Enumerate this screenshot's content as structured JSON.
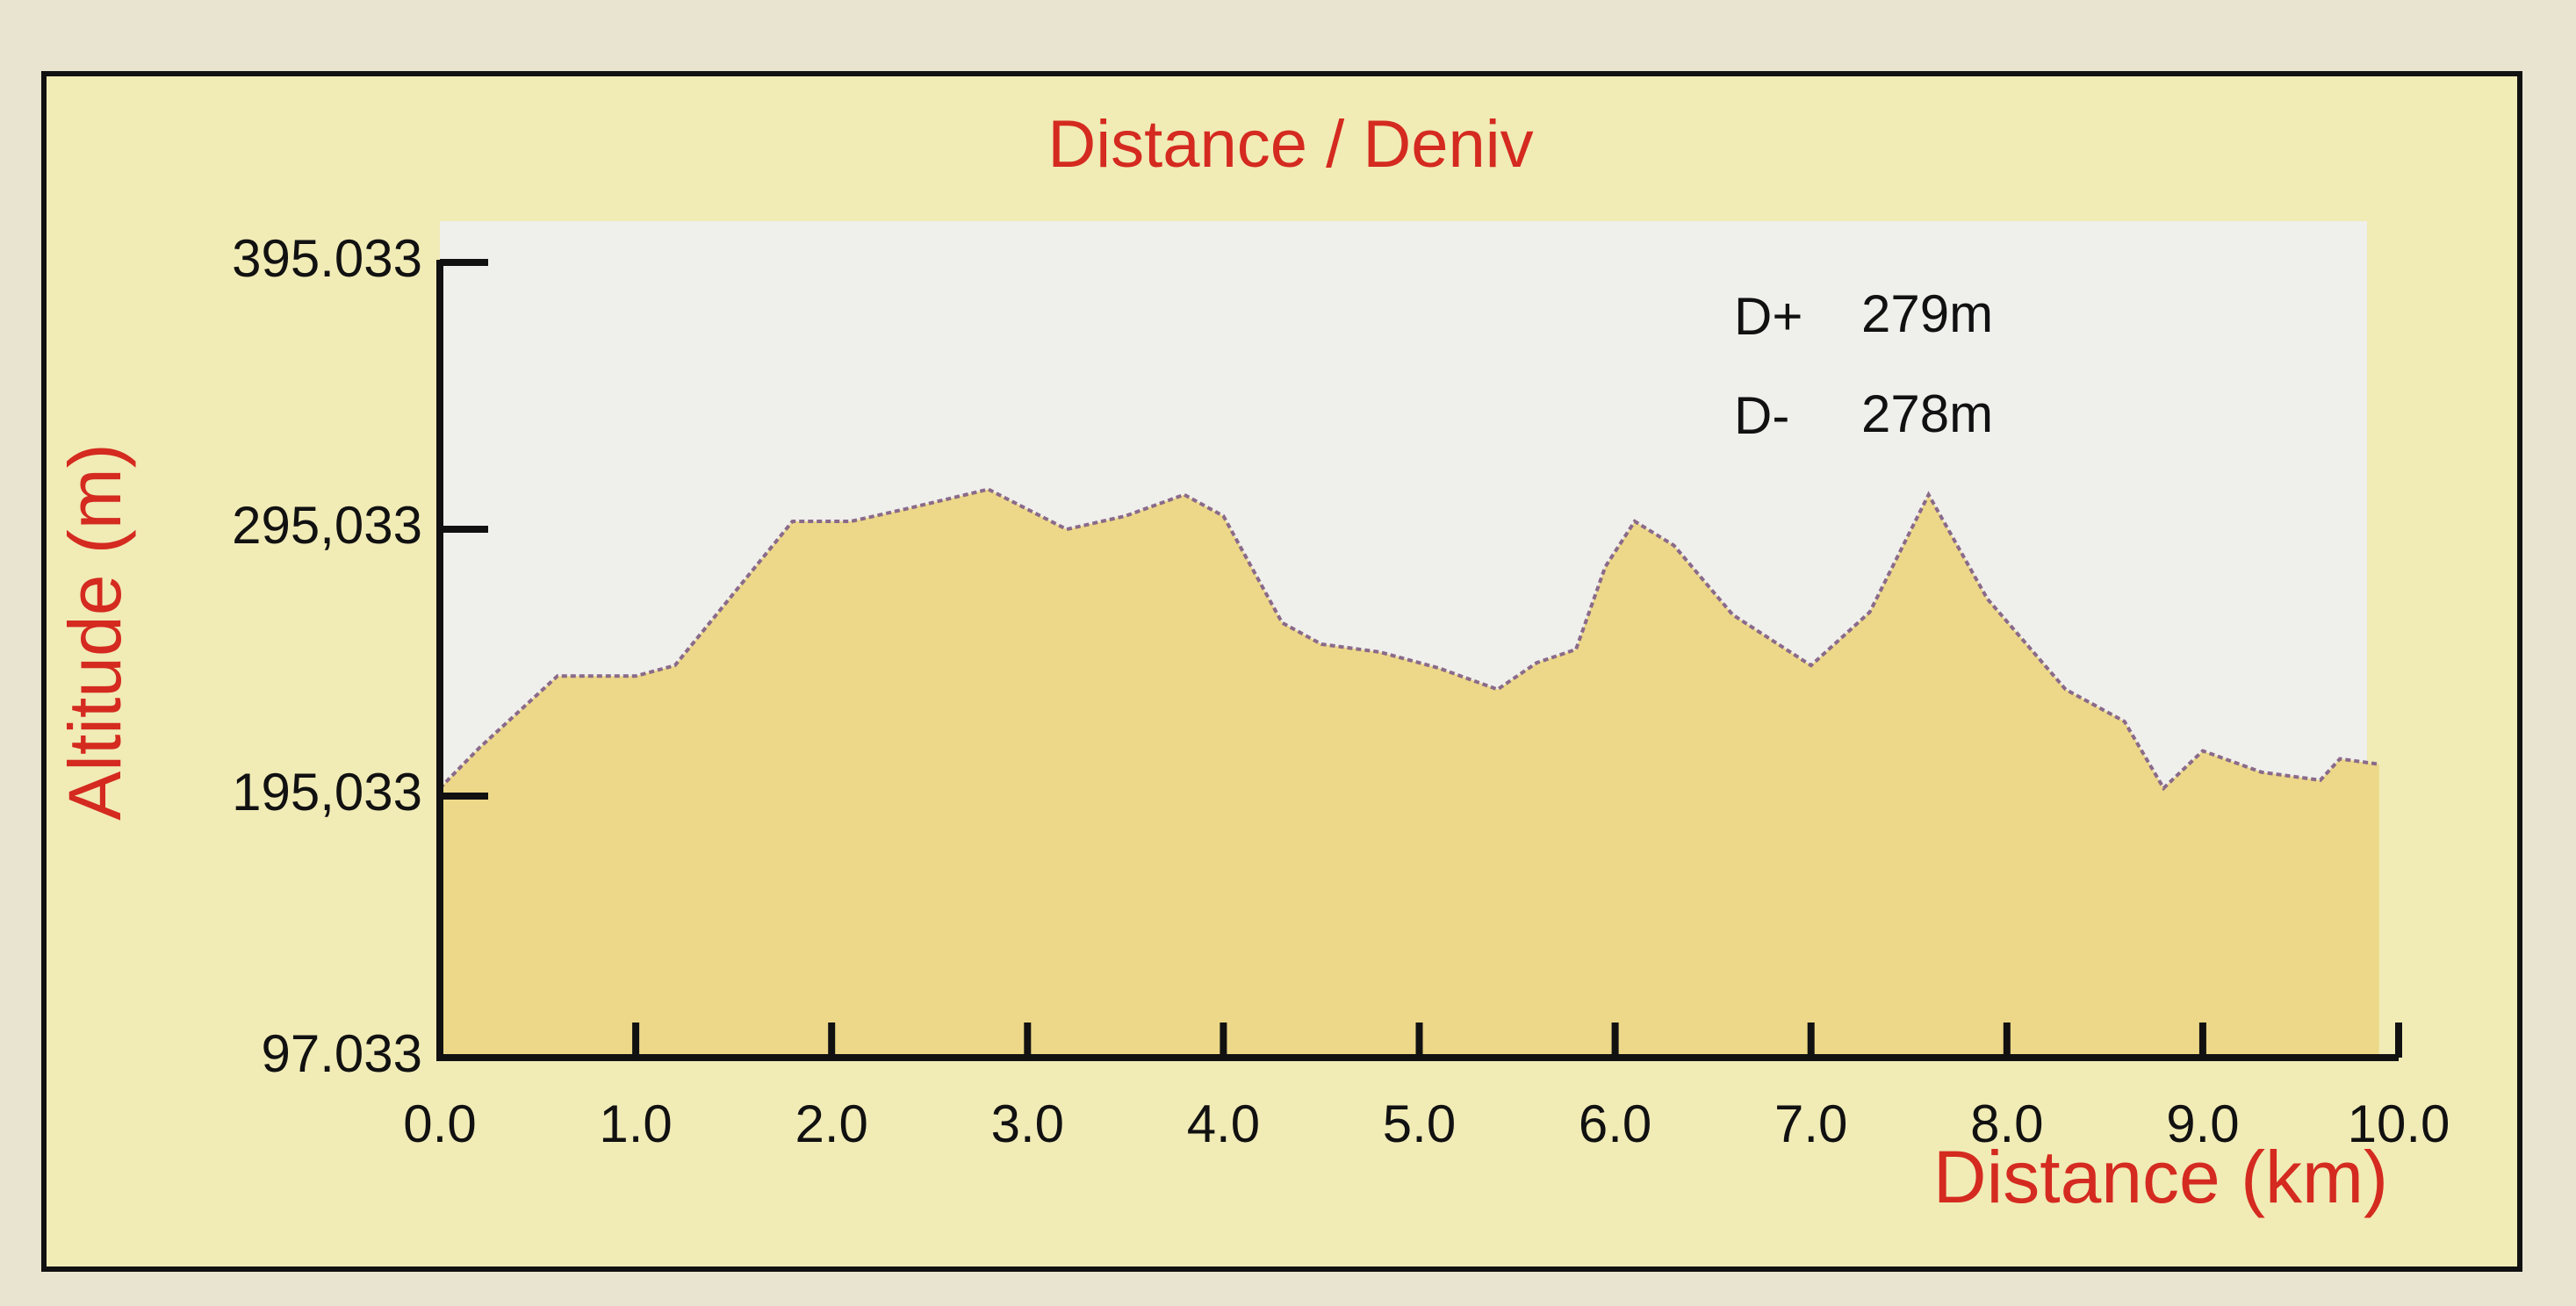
{
  "chart_data": {
    "type": "area",
    "title": "Distance / Deniv",
    "x_label": "Distance (km)",
    "y_label": "Altitude (m)",
    "annotations": [
      "D+",
      "279m",
      "D-",
      "278m"
    ],
    "color": "#ecd888",
    "line_color": "#8a6a8a",
    "x": [
      0,
      0.2,
      0.6,
      1.0,
      1.2,
      1.8,
      2.1,
      2.4,
      2.8,
      3.2,
      3.5,
      3.8,
      4.0,
      4.3,
      4.5,
      4.8,
      5.1,
      5.4,
      5.6,
      5.8,
      5.95,
      6.1,
      6.3,
      6.6,
      7.0,
      7.3,
      7.6,
      7.9,
      8.3,
      8.6,
      8.8,
      9.0,
      9.3,
      9.6,
      9.7,
      9.9
    ],
    "values": [
      198,
      213,
      240,
      240,
      244,
      298,
      298,
      303,
      310,
      295,
      300,
      308,
      300,
      260,
      252,
      249,
      243,
      235,
      245,
      250,
      281,
      298,
      289,
      263,
      244,
      264,
      308,
      269,
      235,
      223,
      198,
      212,
      204,
      201,
      209,
      207
    ],
    "xlim": [
      0,
      10
    ],
    "xticks": [
      {
        "value": 0,
        "label": "0.0"
      },
      {
        "value": 1,
        "label": "1.0"
      },
      {
        "value": 2,
        "label": "2.0"
      },
      {
        "value": 3,
        "label": "3.0"
      },
      {
        "value": 4,
        "label": "4.0"
      },
      {
        "value": 5,
        "label": "5.0"
      },
      {
        "value": 6,
        "label": "6.0"
      },
      {
        "value": 7,
        "label": "7.0"
      },
      {
        "value": 8,
        "label": "8.0"
      },
      {
        "value": 9,
        "label": "9.0"
      },
      {
        "value": 10,
        "label": "10.0"
      }
    ],
    "ylim": [
      97.033,
      395.033
    ],
    "yticks": [
      97.033,
      {
        "value": 195.033,
        "label": "195,033"
      },
      {
        "value": 295.033,
        "label": "295,033"
      },
      395.033
    ]
  }
}
